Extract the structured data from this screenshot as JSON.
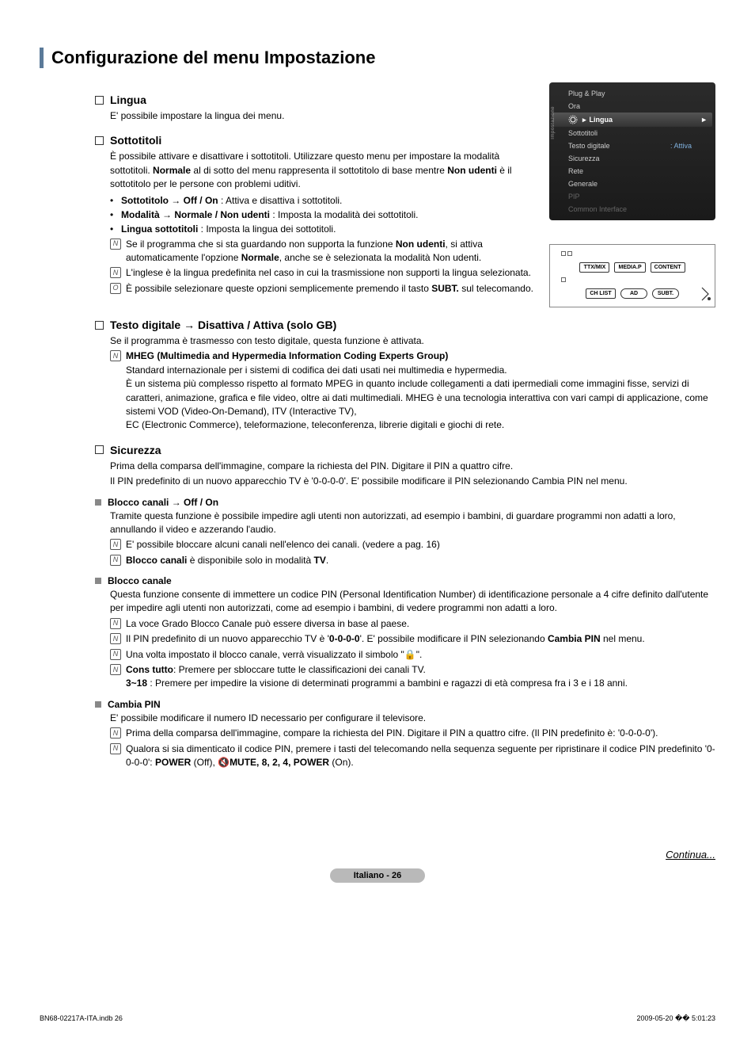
{
  "page": {
    "title": "Configurazione del menu Impostazione",
    "continue": "Continua...",
    "page_label": "Italiano - 26",
    "print_left": "BN68-02217A-ITA.indb   26",
    "print_right": "2009-05-20   �� 5:01:23"
  },
  "osd": {
    "sidebar": "Impostazione",
    "items": [
      {
        "label": "Plug & Play"
      },
      {
        "label": "Ora"
      },
      {
        "label": "Lingua",
        "highlight": true,
        "arrow": "►"
      },
      {
        "label": "Sottotitoli"
      },
      {
        "label": "Testo digitale",
        "value": ": Attiva"
      },
      {
        "label": "Sicurezza"
      },
      {
        "label": "Rete"
      },
      {
        "label": "Generale"
      },
      {
        "label": "PIP",
        "dim": true
      },
      {
        "label": "Common Interface",
        "dim": true
      }
    ]
  },
  "remote": {
    "row1": [
      "TTX/MIX",
      "MEDIA.P",
      "CONTENT"
    ],
    "row2": [
      "CH LIST",
      "AD",
      "SUBT."
    ]
  },
  "sections": {
    "lingua": {
      "title": "Lingua",
      "body": "E' possibile impostare la lingua dei menu."
    },
    "sottotitoli": {
      "title": "Sottotitoli",
      "intro1": "È possibile attivare e disattivare i sottotitoli. Utilizzare questo menu per impostare la modalità sottotitoli. ",
      "intro_b1": "Normale",
      "intro2": " al di sotto del menu rappresenta il sottotitolo di base mentre ",
      "intro_b2": "Non udenti",
      "intro3": " è il sottotitolo per le persone con problemi uditivi.",
      "b1_b": "Sottotitolo → Off / On",
      "b1_t": " : Attiva e disattiva i sottotitoli.",
      "b2_b": "Modalità → Normale / Non udenti",
      "b2_t": " : Imposta la modalità dei sottotitoli.",
      "b3_b": "Lingua sottotitoli",
      "b3_t": " : Imposta la lingua dei sottotitoli.",
      "n1a": "Se il programma che si sta guardando non supporta la funzione ",
      "n1b": "Non udenti",
      "n1c": ", si attiva automaticamente l'opzione ",
      "n1d": "Normale",
      "n1e": ", anche se è selezionata la modalità Non udenti.",
      "n2": "L'inglese è la lingua predefinita nel caso in cui la trasmissione non supporti la lingua selezionata.",
      "n3a": "È possibile selezionare queste opzioni semplicemente premendo il tasto ",
      "n3b": "SUBT.",
      "n3c": " sul telecomando."
    },
    "testo": {
      "title": "Testo digitale → Disattiva / Attiva (solo GB)",
      "body": "Se il programma è trasmesso con testo digitale, questa funzione è attivata.",
      "note_b": "MHEG (Multimedia and Hypermedia Information Coding Experts Group)",
      "note_body": "Standard internazionale per i sistemi di codifica dei dati usati nei multimedia e hypermedia.\nÈ un sistema più complesso rispetto al formato MPEG in quanto include collegamenti a dati ipermediali come immagini fisse, servizi di caratteri, animazione, grafica e file video, oltre ai dati multimediali. MHEG è una tecnologia interattiva con vari campi di applicazione, come sistemi VOD (Video-On-Demand), ITV (Interactive TV),\nEC (Electronic Commerce), teleformazione, teleconferenza, librerie digitali e giochi di rete."
    },
    "sicurezza": {
      "title": "Sicurezza",
      "p1": "Prima della comparsa dell'immagine, compare la richiesta del PIN. Digitare il PIN a quattro cifre.",
      "p2": "Il PIN predefinito di un nuovo apparecchio TV è '0-0-0-0'. E' possibile modificare il PIN selezionando Cambia PIN nel menu.",
      "sub1_title": "Blocco canali → Off / On",
      "sub1_body": "Tramite questa funzione è possibile impedire agli utenti non autorizzati, ad esempio i bambini, di guardare programmi non adatti a loro, annullando il video e azzerando l'audio.",
      "sub1_n1": "E' possibile bloccare alcuni canali nell'elenco dei canali. (vedere a pag. 16)",
      "sub1_n2a": "Blocco canali",
      "sub1_n2b": " è disponibile solo in modalità ",
      "sub1_n2c": "TV",
      "sub1_n2d": ".",
      "sub2_title": "Blocco canale",
      "sub2_body": "Questa funzione consente di immettere un codice PIN (Personal Identification Number) di identificazione personale a 4 cifre definito dall'utente per impedire agli utenti non autorizzati, come ad esempio i bambini, di vedere programmi non adatti a loro.",
      "sub2_n1": "La voce Grado Blocco Canale può essere diversa in base al paese.",
      "sub2_n2a": "Il PIN predefinito di un nuovo apparecchio TV è '",
      "sub2_n2b": "0-0-0-0",
      "sub2_n2c": "'. E' possibile modificare il PIN selezionando ",
      "sub2_n2d": "Cambia PIN",
      "sub2_n2e": " nel menu.",
      "sub2_n3": "Una volta impostato il blocco canale, verrà visualizzato il simbolo \"🔒\".",
      "sub2_n4a": "Cons tutto",
      "sub2_n4b": ": Premere per sbloccare tutte le classificazioni dei canali TV.",
      "sub2_n4c": "3~18",
      "sub2_n4d": " : Premere per impedire la visione di determinati programmi a bambini e ragazzi di età compresa fra i 3 e i 18 anni.",
      "sub3_title": "Cambia PIN",
      "sub3_body": "E' possibile modificare il numero ID necessario per configurare il televisore.",
      "sub3_n1": "Prima della comparsa dell'immagine, compare la richiesta del PIN. Digitare il PIN a quattro cifre. (Il PIN predefinito è: '0-0-0-0').",
      "sub3_n2a": "Qualora si sia dimenticato il codice PIN, premere i tasti del telecomando nella sequenza seguente per ripristinare il codice PIN predefinito '0-0-0-0': ",
      "sub3_n2b": "POWER",
      "sub3_n2c": " (Off), ",
      "sub3_mute": "🔇",
      "sub3_n2d": "MUTE, 8, 2, 4, POWER",
      "sub3_n2e": " (On)."
    }
  }
}
